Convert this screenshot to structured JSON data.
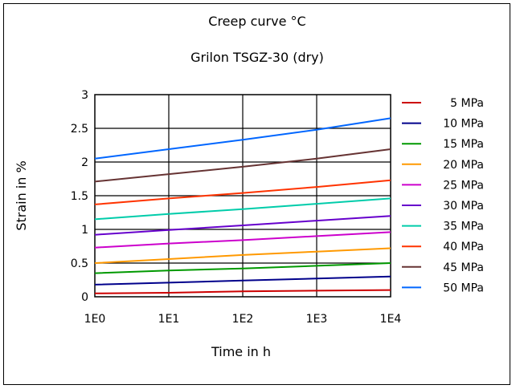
{
  "chart_data": {
    "type": "line",
    "title": "Creep curve °C",
    "subtitle": "Grilon TSGZ-30 (dry)",
    "xlabel": "Time in h",
    "ylabel": "Strain in %",
    "xscale": "log",
    "x_tick_labels": [
      "1E0",
      "1E1",
      "1E2",
      "1E3",
      "1E4"
    ],
    "y_tick_labels": [
      "0",
      "0.5",
      "1",
      "1.5",
      "2",
      "2.5",
      "3"
    ],
    "xlim": [
      1,
      10000
    ],
    "ylim": [
      0,
      3
    ],
    "grid": true,
    "legend_position": "right",
    "x": [
      1,
      10,
      100,
      1000,
      10000
    ],
    "series": [
      {
        "name": "5 MPa",
        "color": "#cc0000",
        "values": [
          0.05,
          0.06,
          0.08,
          0.09,
          0.1
        ]
      },
      {
        "name": "10 MPa",
        "color": "#00008b",
        "values": [
          0.18,
          0.21,
          0.24,
          0.27,
          0.3
        ]
      },
      {
        "name": "15 MPa",
        "color": "#009900",
        "values": [
          0.35,
          0.39,
          0.42,
          0.46,
          0.5
        ]
      },
      {
        "name": "20 MPa",
        "color": "#ff9900",
        "values": [
          0.5,
          0.56,
          0.62,
          0.67,
          0.72
        ]
      },
      {
        "name": "25 MPa",
        "color": "#cc00cc",
        "values": [
          0.73,
          0.79,
          0.84,
          0.9,
          0.96
        ]
      },
      {
        "name": "30 MPa",
        "color": "#6600cc",
        "values": [
          0.92,
          0.99,
          1.06,
          1.13,
          1.2
        ]
      },
      {
        "name": "35 MPa",
        "color": "#00ccaa",
        "values": [
          1.15,
          1.23,
          1.3,
          1.38,
          1.46
        ]
      },
      {
        "name": "40 MPa",
        "color": "#ff3300",
        "values": [
          1.37,
          1.46,
          1.54,
          1.63,
          1.73
        ]
      },
      {
        "name": "45 MPa",
        "color": "#663333",
        "values": [
          1.71,
          1.82,
          1.93,
          2.05,
          2.19
        ]
      },
      {
        "name": "50 MPa",
        "color": "#0066ff",
        "values": [
          2.05,
          2.19,
          2.33,
          2.48,
          2.65
        ]
      }
    ]
  }
}
